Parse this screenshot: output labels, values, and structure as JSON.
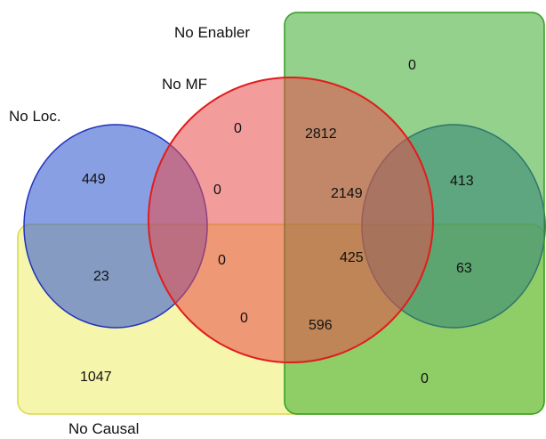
{
  "sets": {
    "no_enabler": {
      "label": "No Enabler",
      "fill": "#3aab2e",
      "stroke": "#2f9e1e"
    },
    "no_mf": {
      "label": "No MF",
      "fill": "#e84a4a",
      "stroke": "#e21c1c"
    },
    "no_loc": {
      "label": "No Loc.",
      "fill": "#3b5fd1",
      "stroke": "#2233bb"
    },
    "no_causal": {
      "label": "No Causal",
      "fill": "#ecec5a",
      "stroke": "#d9d94a"
    }
  },
  "regions": {
    "mf_only_top": "0",
    "mf_enabler_top": "2812",
    "enabler_only": "0",
    "loc_only": "449",
    "mf_loc": "0",
    "mf_loc_enabler": "2149",
    "loc_enabler": "413",
    "loc_causal": "23",
    "mf_loc_causal": "0",
    "all_four": "425",
    "loc_enabler_causal": "63",
    "mf_causal": "0",
    "mf_enabler_causal": "596",
    "causal_only": "1047",
    "enabler_causal": "0"
  }
}
